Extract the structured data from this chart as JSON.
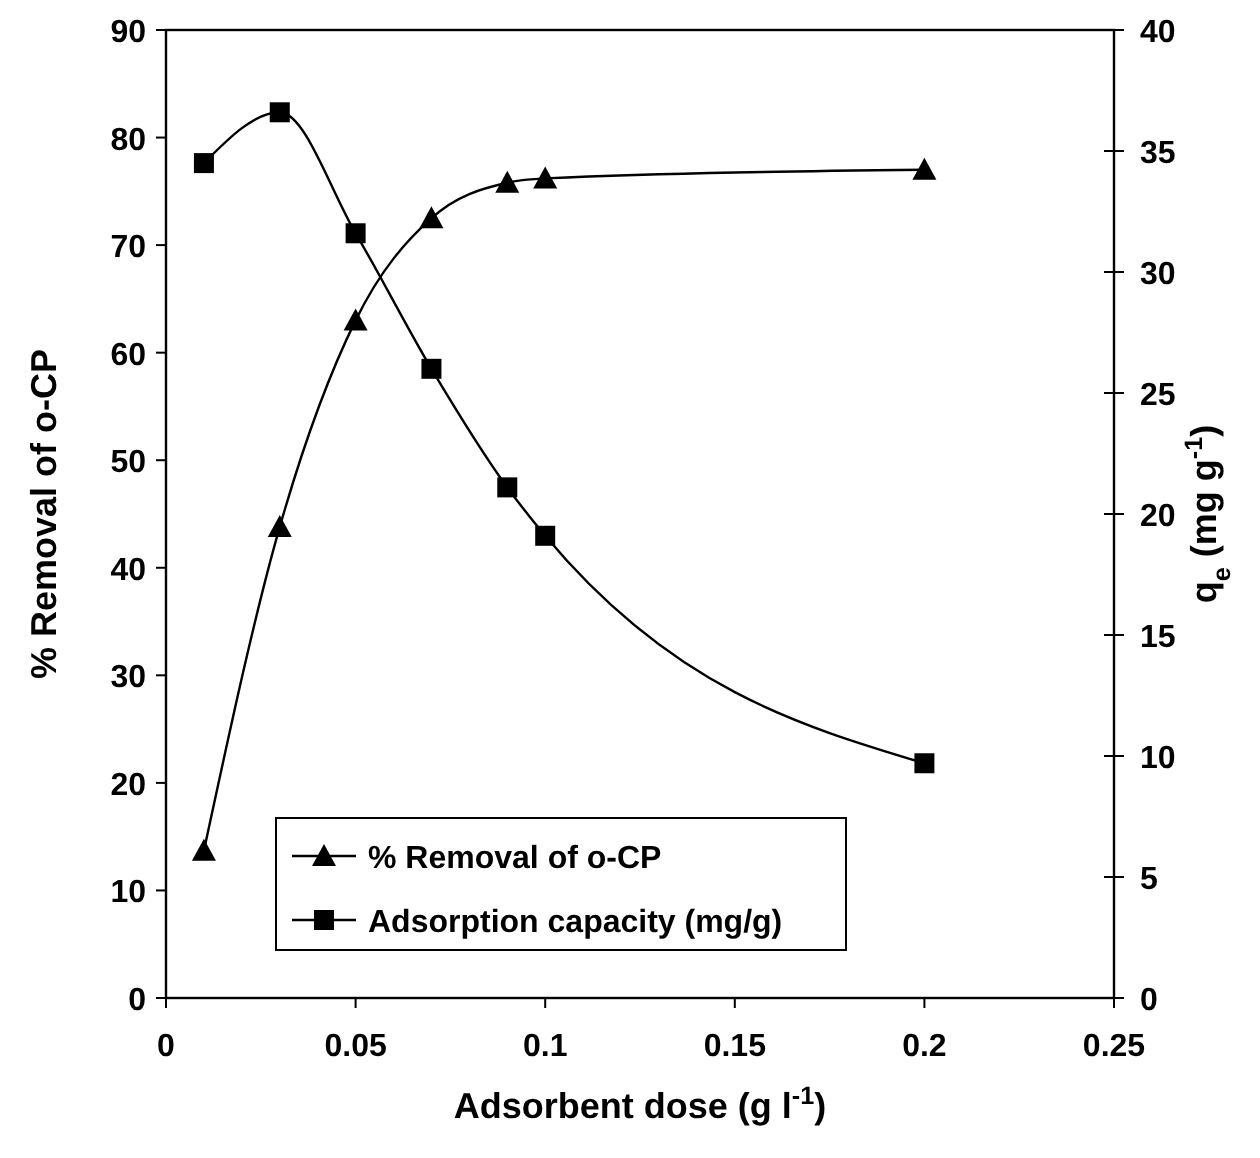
{
  "chart_data": {
    "type": "line",
    "xlabel": "Adsorbent dose (g l$^{-1}$)",
    "ylabel": "% Removal of o-CP",
    "y2label": "q$_{e}$ (mg g$^{-1}$)",
    "x": [
      0.01,
      0.03,
      0.05,
      0.07,
      0.09,
      0.1,
      0.2
    ],
    "series": [
      {
        "name": "% Removal of o-CP",
        "color": "#000000",
        "marker": "triangle",
        "values": [
          13.7,
          43.8,
          63,
          72.5,
          75.8,
          76.2,
          77
        ]
      },
      {
        "name": "Adsorption capacity (mg/g)",
        "color": "#000000",
        "marker": "square",
        "axis": "y2",
        "values": [
          34.5,
          36.6,
          31.6,
          26,
          21.1,
          19.1,
          9.7
        ]
      }
    ],
    "xlim": [
      0,
      0.25
    ],
    "xticks": [
      0,
      0.05,
      0.1,
      0.15,
      0.2,
      0.25
    ],
    "ylim": [
      0,
      90
    ],
    "yticks": [
      0,
      10,
      20,
      30,
      40,
      50,
      60,
      70,
      80,
      90
    ],
    "y2lim": [
      0,
      40
    ],
    "y2ticks": [
      0,
      5,
      10,
      15,
      20,
      25,
      30,
      35,
      40
    ],
    "grid": false,
    "legend": "bottom left",
    "line_style": "solid"
  }
}
